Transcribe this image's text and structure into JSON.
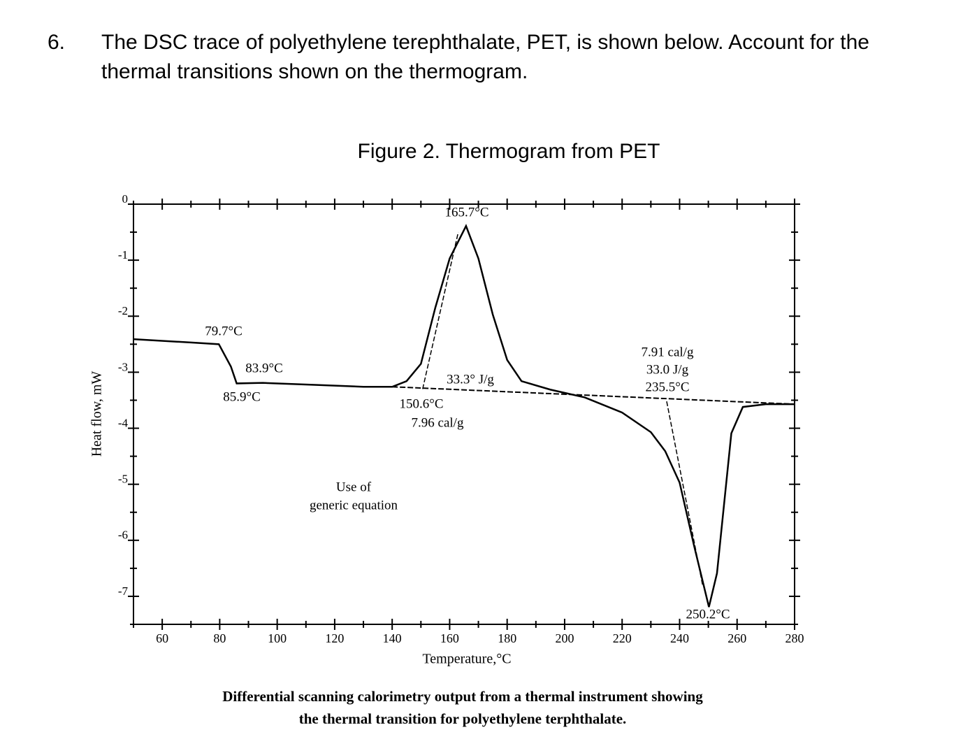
{
  "question": {
    "number": "6.",
    "text_lines": [
      "The DSC trace of polyethylene terephthalate, PET, is shown below.  Account for the",
      "thermal transitions shown on the thermogram."
    ]
  },
  "figure_title": "Figure 2. Thermogram from PET",
  "chart_data": {
    "type": "line",
    "x_label": "Temperature,°C",
    "y_label": "Heat flow, mW",
    "xlim": [
      50,
      280
    ],
    "ylim": [
      -7.5,
      0
    ],
    "xticks": [
      60,
      80,
      100,
      120,
      140,
      160,
      180,
      200,
      220,
      240,
      260,
      280
    ],
    "xticks_minor": [
      50,
      70,
      90,
      110,
      130,
      150,
      170,
      190,
      210,
      230,
      250,
      270
    ],
    "yticks": [
      -7,
      -6,
      -5,
      -4,
      -3,
      -2,
      -1,
      0
    ],
    "yticks_minor": [
      -7.5,
      -6.5,
      -5.5,
      -4.5,
      -3.5,
      -2.5,
      -1.5,
      -0.5
    ],
    "series": [
      {
        "color": "#000000",
        "x": [
          50,
          70,
          79.7,
          83.9,
          85.9,
          95,
          110,
          130,
          140,
          145,
          150,
          155,
          160,
          165.7,
          170,
          175,
          180,
          185,
          195,
          207,
          220,
          230,
          235,
          240,
          245,
          250.2,
          253,
          256,
          258,
          262,
          270,
          280
        ],
        "values": [
          -2.41,
          -2.47,
          -2.5,
          -2.9,
          -3.2,
          -3.19,
          -3.22,
          -3.26,
          -3.26,
          -3.16,
          -2.85,
          -1.85,
          -0.97,
          -0.39,
          -0.97,
          -1.97,
          -2.78,
          -3.16,
          -3.31,
          -3.45,
          -3.72,
          -4.07,
          -4.41,
          -4.97,
          -6.09,
          -7.19,
          -6.59,
          -5.09,
          -4.09,
          -3.62,
          -3.57,
          -3.57
        ]
      }
    ],
    "baseline": {
      "x": [
        140,
        280
      ],
      "values": [
        -3.26,
        -3.57
      ]
    },
    "tangents": [
      {
        "x": [
          150.6,
          163
        ],
        "values": [
          -3.3,
          -0.5
        ]
      },
      {
        "x": [
          235.5,
          248
        ],
        "values": [
          -3.52,
          -6.8
        ]
      }
    ],
    "annotations": [
      "79.7°C",
      "83.9°C",
      "85.9°C",
      "165.7°C",
      "33.3° J/g",
      "150.6°C",
      "7.96 cal/g",
      "7.91 cal/g",
      "33.0 J/g",
      "235.5°C",
      "250.2°C",
      "Use of",
      "generic equation"
    ]
  },
  "caption_lines": [
    "Differential scanning calorimetry output from a thermal instrument showing",
    "the thermal transition for polyethylene terphthalate."
  ]
}
